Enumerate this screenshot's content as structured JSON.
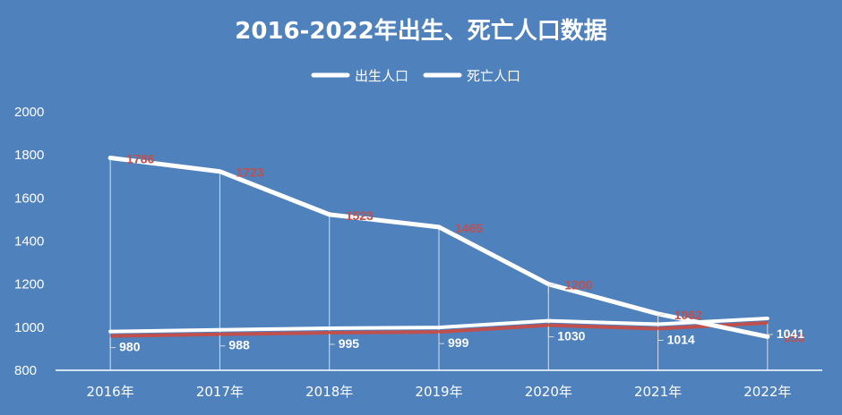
{
  "chart_data": {
    "type": "line",
    "title": "2016-2022年出生、死亡人口数据",
    "categories": [
      "2016年",
      "2017年",
      "2018年",
      "2019年",
      "2020年",
      "2021年",
      "2022年"
    ],
    "series": [
      {
        "name": "出生人口",
        "values": [
          1786,
          1723,
          1523,
          1465,
          1200,
          1062,
          956
        ],
        "label_color": "#c0504d",
        "line_color": "#ffffff"
      },
      {
        "name": "死亡人口",
        "values": [
          980,
          988,
          995,
          999,
          1030,
          1014,
          1041
        ],
        "label_color": "#ffffff",
        "line_color": "#ffffff",
        "under_color": "#c0504d"
      }
    ],
    "yticks": [
      800,
      1000,
      1200,
      1400,
      1600,
      1800,
      2000
    ],
    "ylim": [
      800,
      2000
    ],
    "legend_position": "top",
    "grid": false,
    "colors": {
      "background": "#4f81bd",
      "axis": "#ffffff"
    }
  }
}
